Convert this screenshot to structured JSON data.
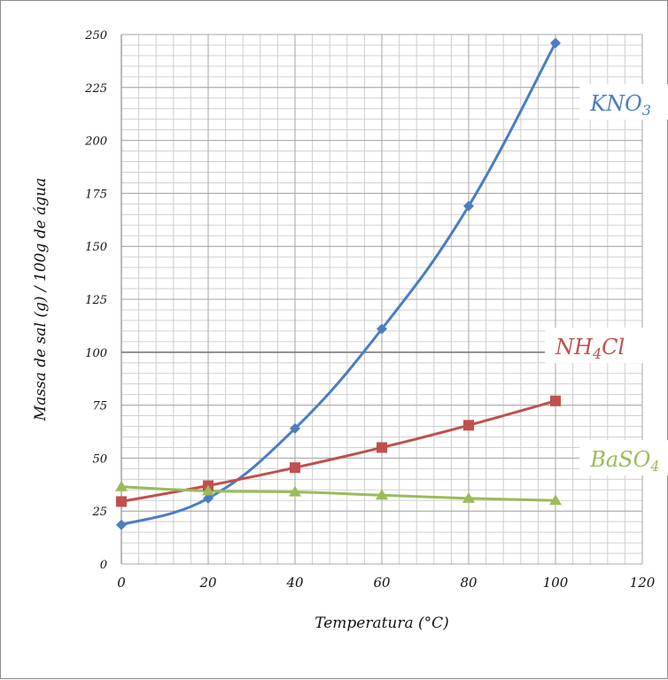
{
  "chart_data": {
    "type": "line",
    "xlabel": "Temperatura (°C)",
    "ylabel": "Massa de sal (g) / 100g de água",
    "xlim": [
      0,
      120
    ],
    "ylim": [
      0,
      250
    ],
    "x_ticks": [
      "0",
      "20",
      "40",
      "60",
      "80",
      "100",
      "120"
    ],
    "y_ticks": [
      "0",
      "25",
      "50",
      "75",
      "100",
      "125",
      "150",
      "175",
      "200",
      "225",
      "250"
    ],
    "grid": true,
    "x": [
      0,
      20,
      40,
      60,
      80,
      100
    ],
    "series": [
      {
        "name": "KNO₃",
        "label_main": "KNO",
        "label_sub": "3",
        "color": "#4a7ec0",
        "marker": "diamond",
        "values": [
          18.5,
          31,
          64,
          111,
          169,
          246
        ],
        "label_pos": {
          "x": 108,
          "y": 214
        }
      },
      {
        "name": "NH₄Cl",
        "label_main_a": "NH",
        "label_sub": "4",
        "label_main_b": "Cl",
        "color": "#c0504d",
        "marker": "square",
        "values": [
          29.5,
          37,
          45.5,
          55,
          65.5,
          77
        ],
        "label_pos": {
          "x": 100,
          "y": 99
        }
      },
      {
        "name": "BaSO₄",
        "label_main": "BaSO",
        "label_sub": "4",
        "color": "#9bbb59",
        "marker": "triangle",
        "values": [
          36.5,
          34.5,
          34,
          32.5,
          31,
          30
        ],
        "label_pos": {
          "x": 108,
          "y": 46
        }
      }
    ]
  }
}
